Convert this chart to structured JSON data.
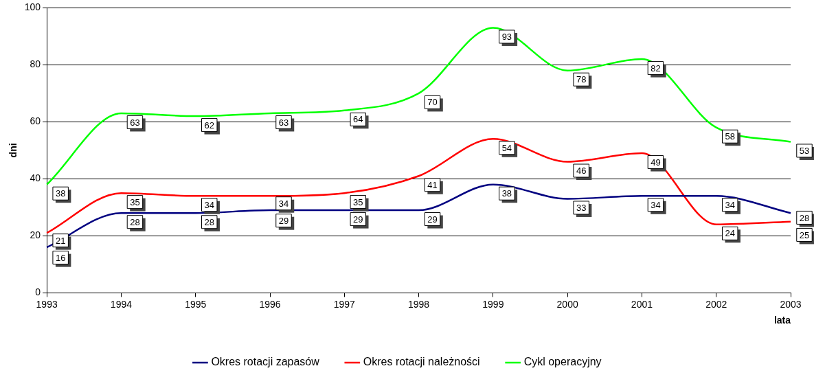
{
  "chart_data": {
    "type": "line",
    "xlabel": "lata",
    "ylabel": "dni",
    "x": [
      1993,
      1994,
      1995,
      1996,
      1997,
      1998,
      1999,
      2000,
      2001,
      2002,
      2003
    ],
    "series": [
      {
        "name": "Okres rotacji zapasów",
        "color": "#000080",
        "values": [
          16,
          28,
          28,
          29,
          29,
          29,
          38,
          33,
          34,
          34,
          28
        ]
      },
      {
        "name": "Okres rotacji należności",
        "color": "#ff0000",
        "values": [
          21,
          35,
          34,
          34,
          35,
          41,
          54,
          46,
          49,
          24,
          25
        ]
      },
      {
        "name": "Cykl operacyjny",
        "color": "#00ff00",
        "values": [
          38,
          63,
          62,
          63,
          64,
          70,
          93,
          78,
          82,
          58,
          53
        ]
      }
    ],
    "xlim": [
      1993,
      2003
    ],
    "xticks": [
      1993,
      1994,
      1995,
      1996,
      1997,
      1998,
      1999,
      2000,
      2001,
      2002,
      2003
    ],
    "ylim": [
      0,
      100
    ],
    "yticks": [
      0,
      20,
      40,
      60,
      80,
      100
    ],
    "grid": "y",
    "legend": "bottom",
    "marker": "none",
    "line_style": "solid",
    "data_labels": true
  }
}
